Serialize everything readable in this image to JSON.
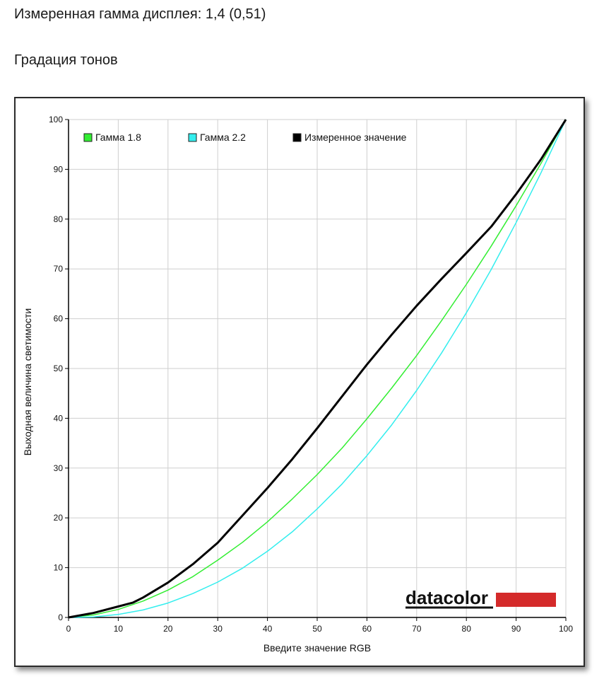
{
  "page": {
    "measured_gamma_line": "Измеренная гамма дисплея: 1,4 (0,51)",
    "section_title": "Градация тонов"
  },
  "logo_text": "datacolor",
  "colors": {
    "gamma18": "#33ee33",
    "gamma22": "#33eeee",
    "measured": "#000000",
    "grid": "#cfcfcf",
    "logo_bar": "#d42a2a"
  },
  "chart_data": {
    "type": "line",
    "title": "",
    "xlabel": "Введите значение RGB",
    "ylabel": "Выходная величина светимости",
    "xlim": [
      0,
      100
    ],
    "ylim": [
      0,
      100
    ],
    "xticks": [
      0,
      10,
      20,
      30,
      40,
      50,
      60,
      70,
      80,
      90,
      100
    ],
    "yticks": [
      0,
      10,
      20,
      30,
      40,
      50,
      60,
      70,
      80,
      90,
      100
    ],
    "grid": true,
    "legend_position": "top-left",
    "series": [
      {
        "name": "Гамма 1.8",
        "color": "#33ee33",
        "x": [
          0,
          5,
          10,
          15,
          20,
          25,
          30,
          35,
          40,
          45,
          50,
          55,
          60,
          65,
          70,
          75,
          80,
          85,
          90,
          95,
          100
        ],
        "y": [
          0,
          0.5,
          1.6,
          3.3,
          5.5,
          8.2,
          11.5,
          15.1,
          19.2,
          23.8,
          28.7,
          34.0,
          39.9,
          46.1,
          52.6,
          59.6,
          66.9,
          74.6,
          82.7,
          91.2,
          100
        ]
      },
      {
        "name": "Гамма 2.2",
        "color": "#33eeee",
        "x": [
          0,
          5,
          10,
          15,
          20,
          25,
          30,
          35,
          40,
          45,
          50,
          55,
          60,
          65,
          70,
          75,
          80,
          85,
          90,
          95,
          100
        ],
        "y": [
          0,
          0.1,
          0.6,
          1.5,
          2.9,
          4.8,
          7.1,
          9.9,
          13.3,
          17.2,
          21.8,
          26.8,
          32.5,
          38.7,
          45.6,
          53.1,
          61.2,
          69.9,
          79.3,
          89.3,
          100
        ]
      },
      {
        "name": "Измеренное значение",
        "color": "#000000",
        "x": [
          0,
          5,
          10,
          13,
          15,
          20,
          25,
          30,
          35,
          40,
          45,
          50,
          55,
          60,
          65,
          70,
          75,
          80,
          85,
          90,
          95,
          100
        ],
        "y": [
          0,
          0.9,
          2.2,
          3.0,
          4.0,
          7.0,
          10.7,
          15.0,
          20.5,
          26.0,
          31.8,
          38.0,
          44.4,
          50.8,
          56.8,
          62.6,
          68.0,
          73.2,
          78.5,
          85.0,
          92.0,
          100
        ]
      }
    ]
  }
}
